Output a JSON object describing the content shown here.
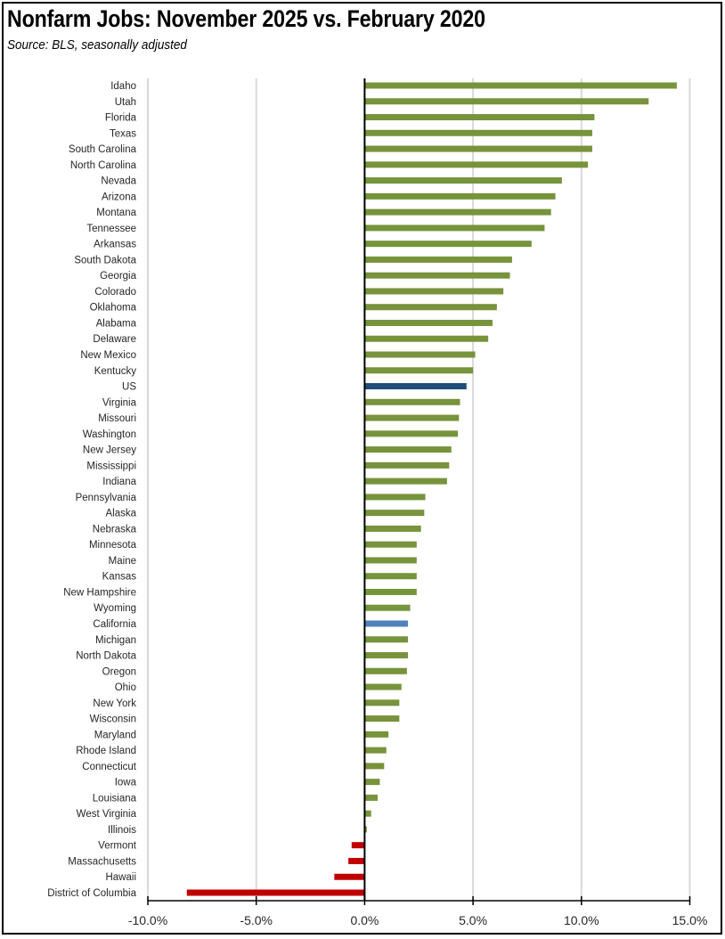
{
  "chart_data": {
    "type": "bar",
    "orientation": "horizontal",
    "title": "Nonfarm Jobs:  November 2025 vs. February 2020",
    "subtitle": "Source:  BLS, seasonally adjusted",
    "xlabel": "",
    "ylabel": "",
    "xlim": [
      -10,
      15
    ],
    "x_ticks": [
      -10,
      -5,
      0,
      5,
      10,
      15
    ],
    "x_tick_labels": [
      "-10.0%",
      "-5.0%",
      "0.0%",
      "5.0%",
      "10.0%",
      "15.0%"
    ],
    "grid": "vertical",
    "legend": "none",
    "colors": {
      "positive": "#77933C",
      "negative": "#C00000",
      "us": "#1F4E79",
      "california": "#4F81BD",
      "grid": "#D9D9D9",
      "axis": "#000000"
    },
    "categories": [
      "Idaho",
      "Utah",
      "Florida",
      "Texas",
      "South Carolina",
      "North Carolina",
      "Nevada",
      "Arizona",
      "Montana",
      "Tennessee",
      "Arkansas",
      "South Dakota",
      "Georgia",
      "Colorado",
      "Oklahoma",
      "Alabama",
      "Delaware",
      "New Mexico",
      "Kentucky",
      "US",
      "Virginia",
      "Missouri",
      "Washington",
      "New Jersey",
      "Mississippi",
      "Indiana",
      "Pennsylvania",
      "Alaska",
      "Nebraska",
      "Minnesota",
      "Maine",
      "Kansas",
      "New Hampshire",
      "Wyoming",
      "California",
      "Michigan",
      "North Dakota",
      "Oregon",
      "Ohio",
      "New York",
      "Wisconsin",
      "Maryland",
      "Rhode Island",
      "Connecticut",
      "Iowa",
      "Louisiana",
      "West Virginia",
      "Illinois",
      "Vermont",
      "Massachusetts",
      "Hawaii",
      "District of Columbia"
    ],
    "values": [
      14.4,
      13.1,
      10.6,
      10.5,
      10.5,
      10.3,
      9.1,
      8.8,
      8.6,
      8.3,
      7.7,
      6.8,
      6.7,
      6.4,
      6.1,
      5.9,
      5.7,
      5.1,
      5.0,
      4.7,
      4.4,
      4.35,
      4.3,
      4.0,
      3.9,
      3.8,
      2.8,
      2.75,
      2.6,
      2.4,
      2.4,
      2.4,
      2.4,
      2.1,
      2.0,
      2.0,
      2.0,
      1.95,
      1.7,
      1.6,
      1.6,
      1.1,
      1.0,
      0.9,
      0.7,
      0.6,
      0.3,
      0.1,
      -0.6,
      -0.75,
      -1.4,
      -8.2
    ],
    "highlight": {
      "US": "us",
      "California": "california"
    }
  }
}
